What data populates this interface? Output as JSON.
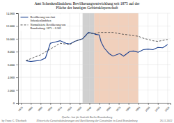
{
  "chart_data": {
    "type": "line",
    "title": "Amt Schenkenländchen: Bevölkerungsentwicklung seit 1875 auf der\nFläche der heutigen Gebietskörperschaft",
    "xlim": [
      1867,
      2023
    ],
    "xticks": [
      1870,
      1880,
      1890,
      1900,
      1910,
      1920,
      1930,
      1940,
      1950,
      1960,
      1970,
      1980,
      1990,
      2000,
      2010,
      2020
    ],
    "ylim": [
      0,
      14000
    ],
    "yticks": [
      0,
      {
        "value": 2000,
        "label": "2.000"
      },
      {
        "value": 4000,
        "label": "4.000"
      },
      {
        "value": 6000,
        "label": "6.000"
      },
      {
        "value": 8000,
        "label": "8.000"
      },
      {
        "value": 10000,
        "label": "10.000"
      },
      {
        "value": 12000,
        "label": "12.000"
      },
      {
        "value": 14000,
        "label": "14.000"
      }
    ],
    "grid": true,
    "legend": "upper left",
    "shaded_ranges": [
      {
        "from": 1933,
        "to": 1945,
        "color": "#b0b0b0"
      },
      {
        "from": 1945,
        "to": 1990,
        "color": "#e8b090"
      }
    ],
    "series": [
      {
        "name": "Bevölkerung von Amt\nSchenkenländchen",
        "color": "#1a3f8f",
        "line_style": "solid",
        "x": [
          1875,
          1880,
          1885,
          1890,
          1895,
          1900,
          1905,
          1910,
          1916,
          1920,
          1925,
          1933,
          1939,
          1945,
          1946,
          1950,
          1952,
          1955,
          1960,
          1964,
          1971,
          1975,
          1981,
          1985,
          1990,
          1995,
          2000,
          2005,
          2010,
          2015,
          2020
        ],
        "values": [
          6583,
          6450,
          6550,
          6650,
          7000,
          9300,
          9500,
          9700,
          9300,
          9200,
          9600,
          10000,
          11000,
          10800,
          10700,
          10600,
          9500,
          8600,
          7700,
          7300,
          7700,
          7300,
          8000,
          8100,
          7900,
          8300,
          8400,
          8300,
          8650,
          8600,
          9100
        ]
      },
      {
        "name": "Normalisierte Bevölkerung von\nBrandenburg: 1875 = 6.583",
        "color": "#444444",
        "line_style": "dashed",
        "x": [
          1875,
          1880,
          1890,
          1900,
          1910,
          1920,
          1925,
          1933,
          1939,
          1946,
          1950,
          1955,
          1960,
          1964,
          1971,
          1975,
          1981,
          1985,
          1990,
          1995,
          2000,
          2005,
          2010,
          2015,
          2020
        ],
        "values": [
          6583,
          6900,
          7500,
          8400,
          9300,
          9100,
          9600,
          10000,
          10900,
          10800,
          11000,
          11000,
          11000,
          11000,
          10800,
          10700,
          10600,
          10500,
          10400,
          10100,
          9900,
          9700,
          9600,
          9750,
          9900
        ]
      }
    ],
    "annotations": [
      "Quelle: Amt für Statistik Berlin-Brandenburg\nHistorische Gemeindeänderungen und Bevölkerung der Gemeinden im Land Brandenburg",
      "by Franz G. Überbach",
      "26.11.2022"
    ]
  }
}
